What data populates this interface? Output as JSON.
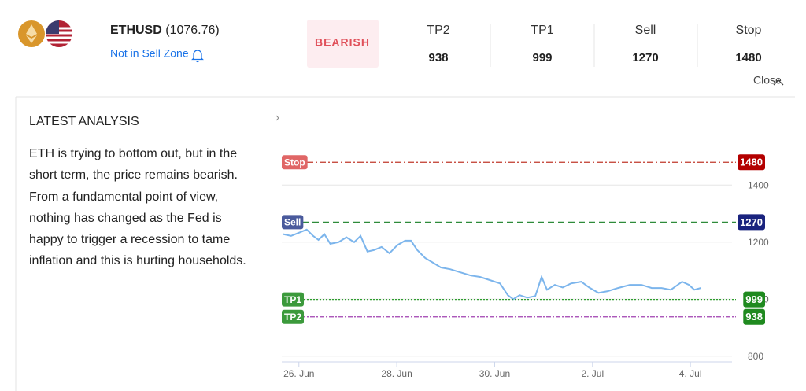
{
  "header": {
    "symbol": "ETHUSD",
    "price": "(1076.76)",
    "zone": "Not in Sell Zone",
    "signal": "BEARISH",
    "levels": [
      {
        "label": "TP2",
        "value": 938
      },
      {
        "label": "TP1",
        "value": 999
      },
      {
        "label": "Sell",
        "value": 1270
      },
      {
        "label": "Stop",
        "value": 1480
      }
    ],
    "close": "Close"
  },
  "analysis": {
    "title": "LATEST ANALYSIS",
    "text": "ETH is trying to bottom out, but in the short term, the price remains bearish. From a fundamental point of view, nothing has changed as the Fed is happy to trigger a recession to tame inflation and this is hurting households."
  },
  "chart_data": {
    "type": "line",
    "x": [
      -0.32,
      -0.16,
      0,
      0.16,
      0.29,
      0.4,
      0.52,
      0.64,
      0.81,
      0.97,
      1.13,
      1.26,
      1.4,
      1.53,
      1.69,
      1.85,
      2.01,
      2.17,
      2.29,
      2.42,
      2.58,
      2.74,
      2.9,
      3.09,
      3.3,
      3.51,
      3.7,
      3.9,
      4.11,
      4.27,
      4.38,
      4.51,
      4.67,
      4.83,
      4.96,
      5.07,
      5.23,
      5.39,
      5.56,
      5.77,
      5.93,
      6.12,
      6.31,
      6.52,
      6.76,
      7.0,
      7.21,
      7.41,
      7.6,
      7.83,
      7.97,
      8.08,
      8.21
    ],
    "series": [
      {
        "color": "#7cb5ec",
        "values": [
          1228,
          1222,
          1233,
          1244,
          1222,
          1208,
          1228,
          1194,
          1200,
          1217,
          1200,
          1222,
          1167,
          1172,
          1183,
          1161,
          1189,
          1205,
          1205,
          1172,
          1144,
          1128,
          1111,
          1105,
          1094,
          1083,
          1078,
          1067,
          1055,
          1014,
          1000,
          1014,
          1005,
          1011,
          1078,
          1033,
          1050,
          1041,
          1055,
          1061,
          1041,
          1022,
          1028,
          1039,
          1050,
          1050,
          1039,
          1039,
          1033,
          1061,
          1050,
          1033,
          1039
        ]
      }
    ],
    "levels": [
      {
        "name": "Stop",
        "value": 1480,
        "color": "#c0392b",
        "tag": "#e06666",
        "vtag": "#b30000",
        "dash": "8 3 2 3"
      },
      {
        "name": "Sell",
        "value": 1270,
        "color": "#2e8b3a",
        "tag": "#4a5a9c",
        "vtag": "#1a237e",
        "dash": "8 5"
      },
      {
        "name": "TP1",
        "value": 999,
        "color": "#2e9e2e",
        "tag": "#3c9a3c",
        "vtag": "#1f8a1f",
        "dash": "2 2"
      },
      {
        "name": "TP2",
        "value": 938,
        "color": "#a040b0",
        "tag": "#3c9a3c",
        "vtag": "#1f8a1f",
        "dash": "6 2 2 2"
      }
    ],
    "xlim": [
      -0.35,
      8.85
    ],
    "xticks": [
      {
        "value": 0,
        "label": "26. Jun"
      },
      {
        "value": 2,
        "label": "28. Jun"
      },
      {
        "value": 4,
        "label": "30. Jun"
      },
      {
        "value": 6,
        "label": "2. Jul"
      },
      {
        "value": 8,
        "label": "4. Jul"
      }
    ],
    "ylim": [
      780,
      1580
    ],
    "yticks": [
      800,
      1000,
      1200,
      1400
    ],
    "grid": true
  }
}
